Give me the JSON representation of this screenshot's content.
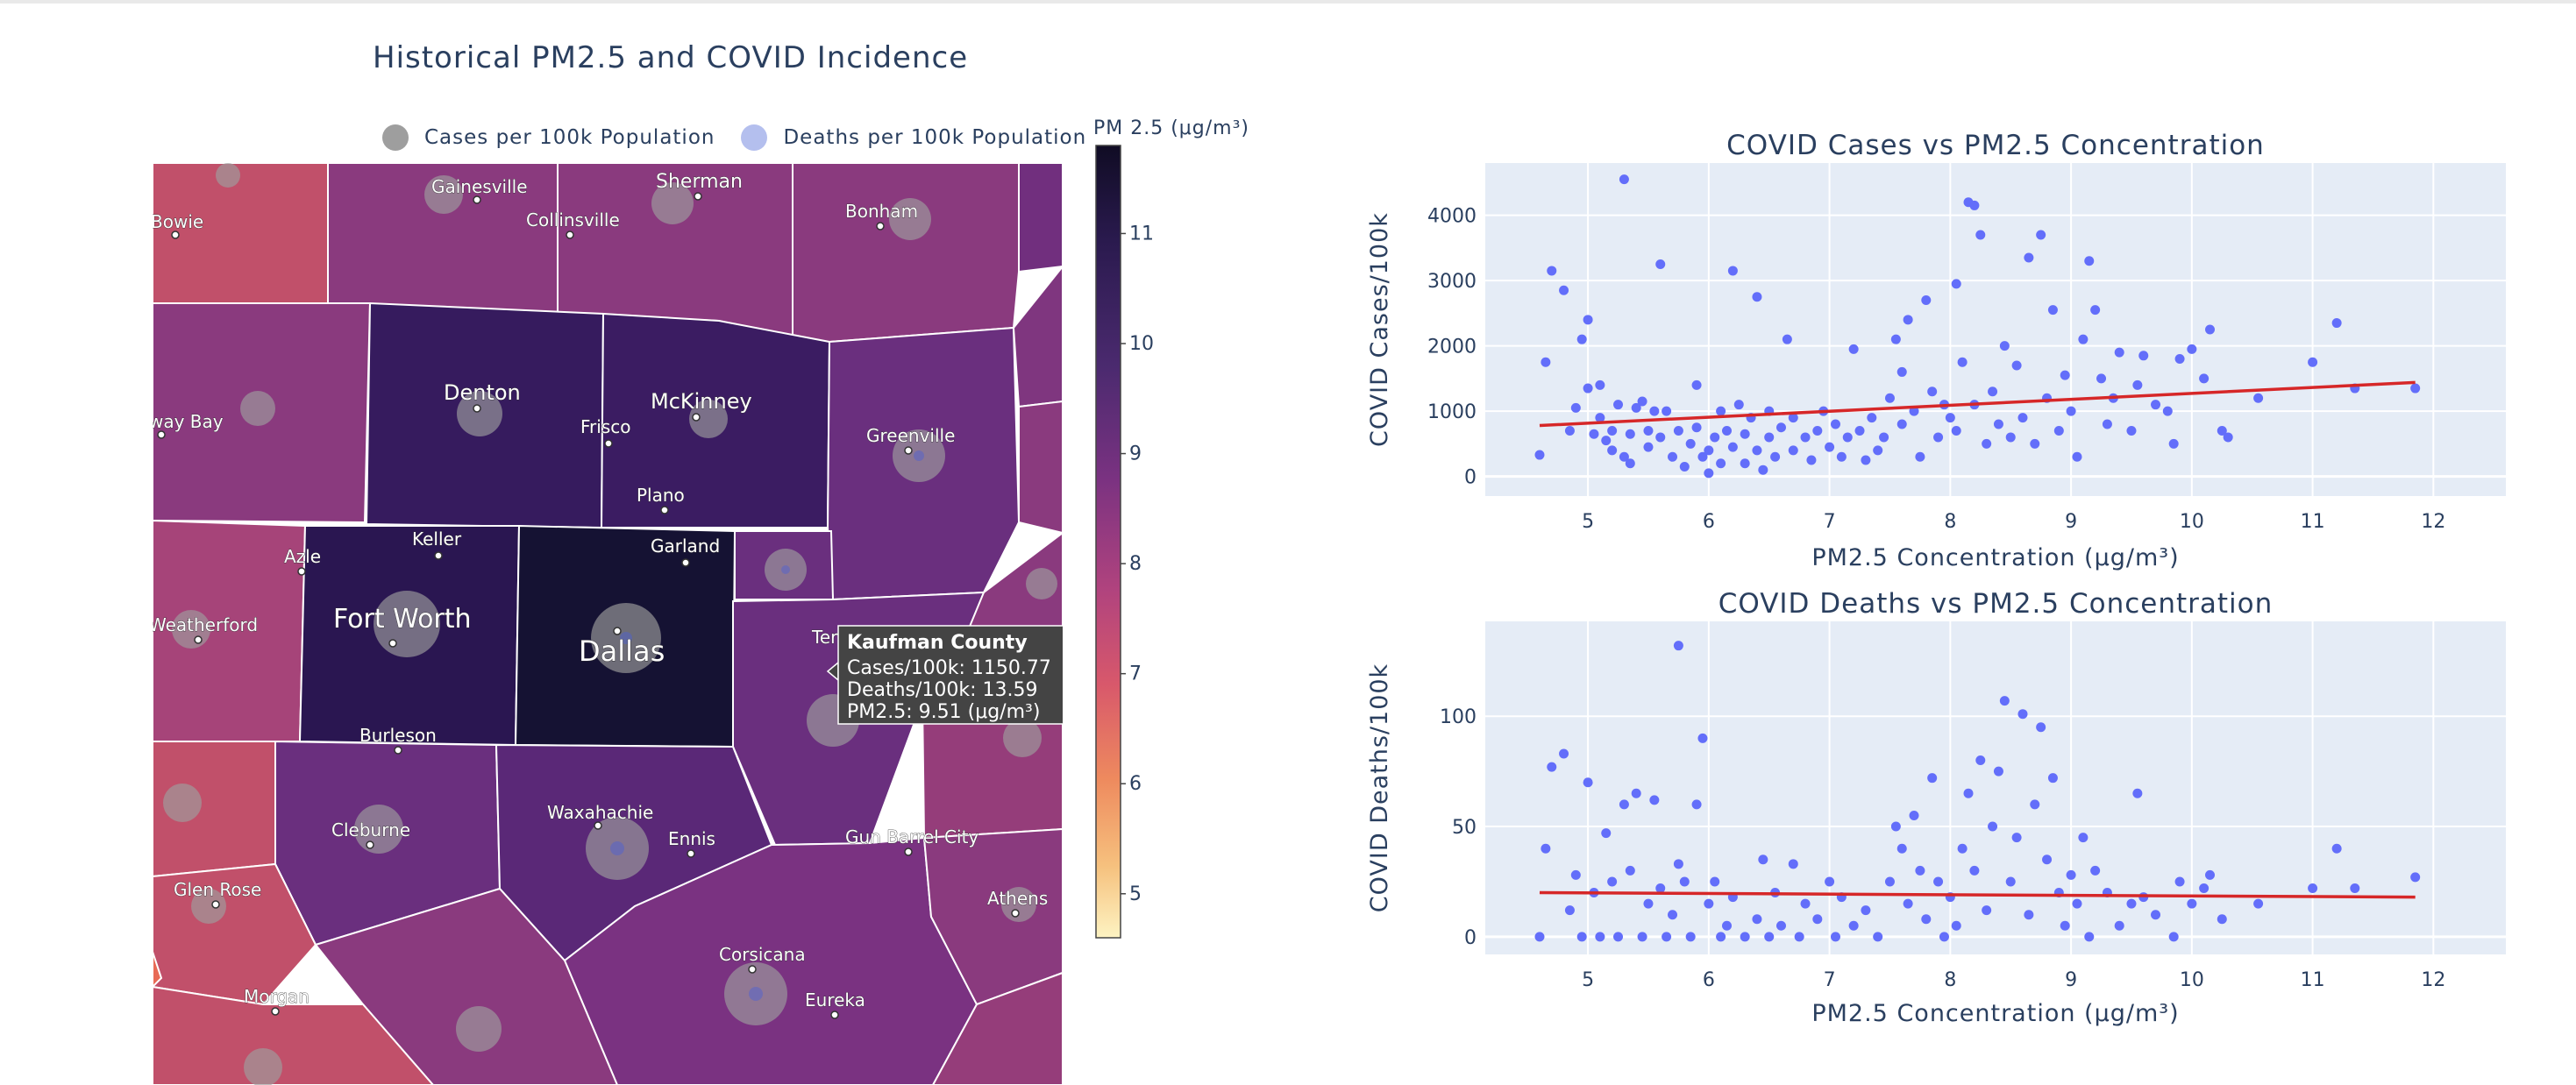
{
  "map": {
    "title": "Historical PM2.5 and COVID Incidence",
    "legend": [
      {
        "label": "Cases per 100k Population",
        "color": "#9e9e9e"
      },
      {
        "label": "Deaths per 100k Population",
        "color": "#b4bfee"
      }
    ],
    "colorbar": {
      "title": "PM 2.5 (μg/m³)",
      "ticks": [
        "11",
        "10",
        "9",
        "8",
        "7",
        "6",
        "5"
      ],
      "range": [
        4.6,
        11.8
      ]
    },
    "cities": [
      "Bowie",
      "Gainesville",
      "Sherman",
      "Collinsville",
      "Bonham",
      "Denton",
      "McKinney",
      "Frisco",
      "way Bay",
      "Greenville",
      "Plano",
      "Keller",
      "Azle",
      "Garland",
      "Fort Worth",
      "Dallas",
      "Weatherford",
      "Ter",
      "Burleson",
      "Waxahachie",
      "Ennis",
      "Gun Barrel City",
      "Cleburne",
      "Glen Rose",
      "Athens",
      "Corsicana",
      "Eureka",
      "Morgan"
    ],
    "tooltip": {
      "title": "Kaufman County",
      "line1": "Cases/100k: 1150.77",
      "line2": "Deaths/100k: 13.59",
      "line3": "PM2.5: 9.51 (μg/m³)"
    }
  },
  "chart_data": [
    {
      "type": "scatter",
      "title": "COVID Cases vs PM2.5 Concentration",
      "xlabel": "PM2.5 Concentration (μg/m³)",
      "ylabel": "COVID Cases/100k",
      "xlim": [
        4.15,
        12.6
      ],
      "ylim": [
        -300,
        4800
      ],
      "xticks": [
        "5",
        "6",
        "7",
        "8",
        "9",
        "10",
        "11",
        "12"
      ],
      "yticks": [
        "0",
        "1000",
        "2000",
        "3000",
        "4000"
      ],
      "color": "#636efa",
      "trend_color": "#d62728",
      "trend": [
        [
          4.6,
          780
        ],
        [
          11.85,
          1440
        ]
      ],
      "points": [
        [
          4.6,
          330
        ],
        [
          4.65,
          1750
        ],
        [
          4.7,
          3150
        ],
        [
          4.8,
          2850
        ],
        [
          4.85,
          700
        ],
        [
          4.9,
          1050
        ],
        [
          4.95,
          2100
        ],
        [
          5.0,
          2400
        ],
        [
          5.0,
          1350
        ],
        [
          5.05,
          650
        ],
        [
          5.1,
          1400
        ],
        [
          5.1,
          900
        ],
        [
          5.15,
          550
        ],
        [
          5.2,
          700
        ],
        [
          5.2,
          400
        ],
        [
          5.25,
          1100
        ],
        [
          5.3,
          300
        ],
        [
          5.3,
          4550
        ],
        [
          5.35,
          650
        ],
        [
          5.35,
          200
        ],
        [
          5.4,
          1050
        ],
        [
          5.45,
          1150
        ],
        [
          5.5,
          700
        ],
        [
          5.5,
          450
        ],
        [
          5.55,
          1000
        ],
        [
          5.6,
          3250
        ],
        [
          5.6,
          600
        ],
        [
          5.65,
          1000
        ],
        [
          5.7,
          300
        ],
        [
          5.75,
          700
        ],
        [
          5.8,
          150
        ],
        [
          5.85,
          500
        ],
        [
          5.9,
          750
        ],
        [
          5.9,
          1400
        ],
        [
          5.95,
          300
        ],
        [
          6.0,
          400
        ],
        [
          6.0,
          50
        ],
        [
          6.05,
          600
        ],
        [
          6.1,
          1000
        ],
        [
          6.1,
          200
        ],
        [
          6.15,
          700
        ],
        [
          6.2,
          3150
        ],
        [
          6.2,
          450
        ],
        [
          6.25,
          1100
        ],
        [
          6.3,
          200
        ],
        [
          6.3,
          650
        ],
        [
          6.35,
          900
        ],
        [
          6.4,
          2750
        ],
        [
          6.4,
          400
        ],
        [
          6.45,
          100
        ],
        [
          6.5,
          600
        ],
        [
          6.5,
          1000
        ],
        [
          6.55,
          300
        ],
        [
          6.6,
          750
        ],
        [
          6.65,
          2100
        ],
        [
          6.7,
          400
        ],
        [
          6.7,
          900
        ],
        [
          6.8,
          600
        ],
        [
          6.85,
          250
        ],
        [
          6.9,
          700
        ],
        [
          6.95,
          1000
        ],
        [
          7.0,
          450
        ],
        [
          7.05,
          800
        ],
        [
          7.1,
          300
        ],
        [
          7.15,
          600
        ],
        [
          7.2,
          1950
        ],
        [
          7.25,
          700
        ],
        [
          7.3,
          250
        ],
        [
          7.35,
          900
        ],
        [
          7.4,
          400
        ],
        [
          7.45,
          600
        ],
        [
          7.5,
          1200
        ],
        [
          7.55,
          2100
        ],
        [
          7.6,
          1600
        ],
        [
          7.6,
          800
        ],
        [
          7.65,
          2400
        ],
        [
          7.7,
          1000
        ],
        [
          7.75,
          300
        ],
        [
          7.8,
          2700
        ],
        [
          7.85,
          1300
        ],
        [
          7.9,
          600
        ],
        [
          7.95,
          1100
        ],
        [
          8.0,
          900
        ],
        [
          8.05,
          2950
        ],
        [
          8.05,
          700
        ],
        [
          8.1,
          1750
        ],
        [
          8.15,
          4200
        ],
        [
          8.2,
          4150
        ],
        [
          8.2,
          1100
        ],
        [
          8.25,
          3700
        ],
        [
          8.3,
          500
        ],
        [
          8.35,
          1300
        ],
        [
          8.4,
          800
        ],
        [
          8.45,
          2000
        ],
        [
          8.5,
          600
        ],
        [
          8.55,
          1700
        ],
        [
          8.6,
          900
        ],
        [
          8.65,
          3350
        ],
        [
          8.7,
          500
        ],
        [
          8.75,
          3700
        ],
        [
          8.8,
          1200
        ],
        [
          8.85,
          2550
        ],
        [
          8.9,
          700
        ],
        [
          8.95,
          1550
        ],
        [
          9.0,
          1000
        ],
        [
          9.05,
          300
        ],
        [
          9.1,
          2100
        ],
        [
          9.15,
          3300
        ],
        [
          9.2,
          2550
        ],
        [
          9.25,
          1500
        ],
        [
          9.3,
          800
        ],
        [
          9.35,
          1200
        ],
        [
          9.4,
          1900
        ],
        [
          9.5,
          700
        ],
        [
          9.55,
          1400
        ],
        [
          9.6,
          1850
        ],
        [
          9.7,
          1100
        ],
        [
          9.8,
          1000
        ],
        [
          9.85,
          500
        ],
        [
          9.9,
          1800
        ],
        [
          10.0,
          1950
        ],
        [
          10.1,
          1500
        ],
        [
          10.15,
          2250
        ],
        [
          10.25,
          700
        ],
        [
          10.3,
          600
        ],
        [
          10.55,
          1200
        ],
        [
          11.0,
          1750
        ],
        [
          11.2,
          2350
        ],
        [
          11.35,
          1350
        ],
        [
          11.85,
          1350
        ]
      ]
    },
    {
      "type": "scatter",
      "title": "COVID Deaths vs PM2.5 Concentration",
      "xlabel": "PM2.5 Concentration (μg/m³)",
      "ylabel": "COVID Deaths/100k",
      "xlim": [
        4.15,
        12.6
      ],
      "ylim": [
        -8,
        143
      ],
      "xticks": [
        "5",
        "6",
        "7",
        "8",
        "9",
        "10",
        "11",
        "12"
      ],
      "yticks": [
        "0",
        "50",
        "100"
      ],
      "color": "#636efa",
      "trend_color": "#d62728",
      "trend": [
        [
          4.6,
          20
        ],
        [
          11.85,
          18
        ]
      ],
      "points": [
        [
          4.6,
          0
        ],
        [
          4.65,
          40
        ],
        [
          4.7,
          77
        ],
        [
          4.8,
          83
        ],
        [
          4.85,
          12
        ],
        [
          4.9,
          28
        ],
        [
          4.95,
          0
        ],
        [
          5.0,
          70
        ],
        [
          5.05,
          20
        ],
        [
          5.1,
          0
        ],
        [
          5.15,
          47
        ],
        [
          5.2,
          25
        ],
        [
          5.25,
          0
        ],
        [
          5.3,
          60
        ],
        [
          5.35,
          30
        ],
        [
          5.4,
          65
        ],
        [
          5.45,
          0
        ],
        [
          5.5,
          15
        ],
        [
          5.55,
          62
        ],
        [
          5.6,
          22
        ],
        [
          5.65,
          0
        ],
        [
          5.7,
          10
        ],
        [
          5.75,
          33
        ],
        [
          5.75,
          132
        ],
        [
          5.8,
          25
        ],
        [
          5.85,
          0
        ],
        [
          5.9,
          60
        ],
        [
          5.95,
          90
        ],
        [
          6.0,
          15
        ],
        [
          6.05,
          25
        ],
        [
          6.1,
          0
        ],
        [
          6.15,
          5
        ],
        [
          6.2,
          18
        ],
        [
          6.3,
          0
        ],
        [
          6.4,
          8
        ],
        [
          6.45,
          35
        ],
        [
          6.5,
          0
        ],
        [
          6.55,
          20
        ],
        [
          6.6,
          5
        ],
        [
          6.7,
          33
        ],
        [
          6.75,
          0
        ],
        [
          6.8,
          15
        ],
        [
          6.9,
          8
        ],
        [
          7.0,
          25
        ],
        [
          7.05,
          0
        ],
        [
          7.1,
          18
        ],
        [
          7.2,
          5
        ],
        [
          7.3,
          12
        ],
        [
          7.4,
          0
        ],
        [
          7.5,
          25
        ],
        [
          7.55,
          50
        ],
        [
          7.6,
          40
        ],
        [
          7.65,
          15
        ],
        [
          7.7,
          55
        ],
        [
          7.75,
          30
        ],
        [
          7.8,
          8
        ],
        [
          7.85,
          72
        ],
        [
          7.9,
          25
        ],
        [
          7.95,
          0
        ],
        [
          8.0,
          18
        ],
        [
          8.05,
          5
        ],
        [
          8.1,
          40
        ],
        [
          8.15,
          65
        ],
        [
          8.2,
          30
        ],
        [
          8.25,
          80
        ],
        [
          8.3,
          12
        ],
        [
          8.35,
          50
        ],
        [
          8.4,
          75
        ],
        [
          8.45,
          107
        ],
        [
          8.5,
          25
        ],
        [
          8.55,
          45
        ],
        [
          8.6,
          101
        ],
        [
          8.65,
          10
        ],
        [
          8.7,
          60
        ],
        [
          8.75,
          95
        ],
        [
          8.8,
          35
        ],
        [
          8.85,
          72
        ],
        [
          8.9,
          20
        ],
        [
          8.95,
          5
        ],
        [
          9.0,
          28
        ],
        [
          9.05,
          15
        ],
        [
          9.1,
          45
        ],
        [
          9.15,
          0
        ],
        [
          9.2,
          30
        ],
        [
          9.3,
          20
        ],
        [
          9.4,
          5
        ],
        [
          9.5,
          15
        ],
        [
          9.55,
          65
        ],
        [
          9.6,
          18
        ],
        [
          9.7,
          10
        ],
        [
          9.85,
          0
        ],
        [
          9.9,
          25
        ],
        [
          10.0,
          15
        ],
        [
          10.1,
          22
        ],
        [
          10.15,
          28
        ],
        [
          10.25,
          8
        ],
        [
          10.55,
          15
        ],
        [
          11.0,
          22
        ],
        [
          11.2,
          40
        ],
        [
          11.35,
          22
        ],
        [
          11.85,
          27
        ]
      ]
    }
  ]
}
